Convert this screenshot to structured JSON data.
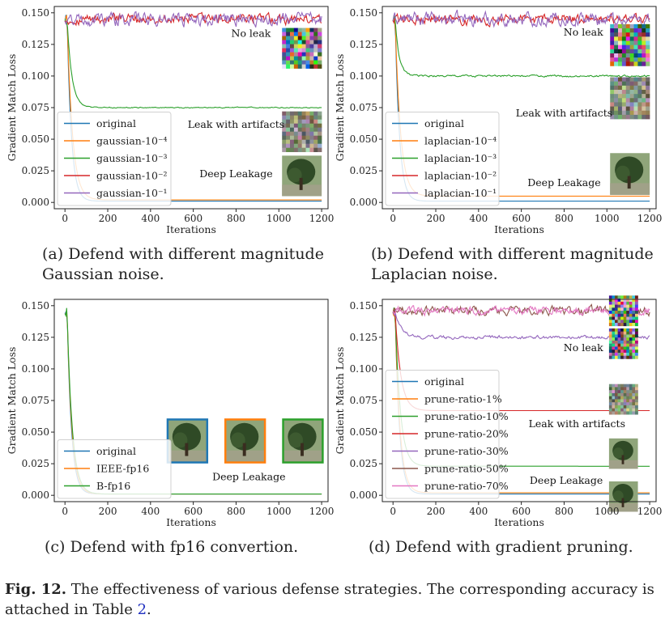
{
  "figure": {
    "label": "Fig. 12.",
    "caption_text": "The effectiveness of various defense strategies. The corresponding accuracy is attached in Table",
    "caption_ref": "2",
    "caption_end": "."
  },
  "colors": {
    "original": "#1f77b4",
    "c1": "#ff7f0e",
    "c2": "#2ca02c",
    "c3": "#d62728",
    "c4": "#9467bd",
    "c5": "#8c564b",
    "c6": "#e377c2"
  },
  "chart_data": [
    {
      "id": "a",
      "type": "line",
      "caption_line1": "(a) Defend with different magnitude",
      "caption_line2": "Gaussian noise.",
      "xlabel": "Iterations",
      "ylabel": "Gradient Match Loss",
      "xlim": [
        -50,
        1230
      ],
      "ylim": [
        -0.005,
        0.155
      ],
      "xticks": [
        0,
        200,
        400,
        600,
        800,
        1000,
        1200
      ],
      "yticks": [
        0.0,
        0.025,
        0.05,
        0.075,
        0.1,
        0.125,
        0.15
      ],
      "ytick_labels": [
        "0.000",
        "0.025",
        "0.050",
        "0.075",
        "0.100",
        "0.125",
        "0.150"
      ],
      "legend_position": "lower-left",
      "series": [
        {
          "name": "original",
          "color": "#1f77b4",
          "start": 0.145,
          "drop": 20,
          "final": 0.001,
          "noise": 0
        },
        {
          "name": "gaussian-10⁻⁴",
          "color": "#ff7f0e",
          "start": 0.145,
          "drop": 25,
          "final": 0.002,
          "noise": 0
        },
        {
          "name": "gaussian-10⁻³",
          "color": "#2ca02c",
          "start": 0.145,
          "drop": 22,
          "final": 0.075,
          "noise": 0.0003
        },
        {
          "name": "gaussian-10⁻²",
          "color": "#d62728",
          "start": 0.145,
          "drop": 0,
          "final": 0.145,
          "noise": 0.003
        },
        {
          "name": "gaussian-10⁻¹",
          "color": "#9467bd",
          "start": 0.145,
          "drop": 0,
          "final": 0.145,
          "noise": 0.004
        }
      ],
      "annotations": [
        {
          "text": "No leak",
          "x": 870,
          "y": 0.131
        },
        {
          "text": "Leak with artifacts",
          "x": 800,
          "y": 0.059
        },
        {
          "text": "Deep Leakage",
          "x": 800,
          "y": 0.02
        }
      ],
      "thumbnails": [
        {
          "kind": "noise",
          "x0": 1015,
          "y_top": 0.138,
          "w": 185,
          "h": 0.032
        },
        {
          "kind": "artifacts",
          "x0": 1015,
          "y_top": 0.072,
          "w": 185,
          "h": 0.032
        },
        {
          "kind": "tree",
          "x0": 1015,
          "y_top": 0.037,
          "w": 185,
          "h": 0.032
        }
      ]
    },
    {
      "id": "b",
      "type": "line",
      "caption_line1": "(b) Defend with different magnitude",
      "caption_line2": "Laplacian noise.",
      "xlabel": "Iterations",
      "ylabel": "Gradient Match Loss",
      "xlim": [
        -50,
        1230
      ],
      "ylim": [
        -0.005,
        0.155
      ],
      "xticks": [
        0,
        200,
        400,
        600,
        800,
        1000,
        1200
      ],
      "yticks": [
        0.0,
        0.025,
        0.05,
        0.075,
        0.1,
        0.125,
        0.15
      ],
      "ytick_labels": [
        "0.000",
        "0.025",
        "0.050",
        "0.075",
        "0.100",
        "0.125",
        "0.150"
      ],
      "legend_position": "lower-left",
      "series": [
        {
          "name": "original",
          "color": "#1f77b4",
          "start": 0.145,
          "drop": 20,
          "final": 0.001,
          "noise": 0
        },
        {
          "name": "laplacian-10⁻⁴",
          "color": "#ff7f0e",
          "start": 0.145,
          "drop": 25,
          "final": 0.005,
          "noise": 0
        },
        {
          "name": "laplacian-10⁻³",
          "color": "#2ca02c",
          "start": 0.145,
          "drop": 18,
          "final": 0.1,
          "noise": 0.0006
        },
        {
          "name": "laplacian-10⁻²",
          "color": "#d62728",
          "start": 0.145,
          "drop": 0,
          "final": 0.145,
          "noise": 0.003
        },
        {
          "name": "laplacian-10⁻¹",
          "color": "#9467bd",
          "start": 0.145,
          "drop": 0,
          "final": 0.145,
          "noise": 0.004
        }
      ],
      "annotations": [
        {
          "text": "No leak",
          "x": 890,
          "y": 0.132
        },
        {
          "text": "Leak with artifacts",
          "x": 800,
          "y": 0.068
        },
        {
          "text": "Deep Leakage",
          "x": 800,
          "y": 0.013
        }
      ],
      "thumbnails": [
        {
          "kind": "noise",
          "x0": 1015,
          "y_top": 0.141,
          "w": 185,
          "h": 0.033
        },
        {
          "kind": "artifacts",
          "x0": 1015,
          "y_top": 0.099,
          "w": 185,
          "h": 0.033
        },
        {
          "kind": "tree",
          "x0": 1015,
          "y_top": 0.039,
          "w": 185,
          "h": 0.033
        }
      ]
    },
    {
      "id": "c",
      "type": "line",
      "caption_line1": "(c) Defend with fp16 convertion.",
      "caption_line2": "",
      "xlabel": "Iterations",
      "ylabel": "Gradient Match Loss",
      "xlim": [
        -50,
        1230
      ],
      "ylim": [
        -0.005,
        0.155
      ],
      "xticks": [
        0,
        200,
        400,
        600,
        800,
        1000,
        1200
      ],
      "yticks": [
        0.0,
        0.025,
        0.05,
        0.075,
        0.1,
        0.125,
        0.15
      ],
      "ytick_labels": [
        "0.000",
        "0.025",
        "0.050",
        "0.075",
        "0.100",
        "0.125",
        "0.150"
      ],
      "legend_position": "lower-left",
      "series": [
        {
          "name": "original",
          "color": "#1f77b4",
          "start": 0.145,
          "drop": 20,
          "final": 0.001,
          "noise": 0
        },
        {
          "name": "IEEE-fp16",
          "color": "#ff7f0e",
          "start": 0.145,
          "drop": 22,
          "final": 0.001,
          "noise": 0
        },
        {
          "name": "B-fp16",
          "color": "#2ca02c",
          "start": 0.145,
          "drop": 24,
          "final": 0.001,
          "noise": 0
        }
      ],
      "annotations": [
        {
          "text": "Deep Leakage",
          "x": 860,
          "y": 0.012
        }
      ],
      "thumbnails": [
        {
          "kind": "tree",
          "x0": 480,
          "y_top": 0.06,
          "w": 185,
          "h": 0.034,
          "border": "#1f77b4"
        },
        {
          "kind": "tree",
          "x0": 750,
          "y_top": 0.06,
          "w": 185,
          "h": 0.034,
          "border": "#ff7f0e"
        },
        {
          "kind": "tree",
          "x0": 1020,
          "y_top": 0.06,
          "w": 185,
          "h": 0.034,
          "border": "#2ca02c"
        }
      ]
    },
    {
      "id": "d",
      "type": "line",
      "caption_line1": "(d) Defend with gradient pruning.",
      "caption_line2": "",
      "xlabel": "Iterations",
      "ylabel": "Gradient Match Loss",
      "xlim": [
        -50,
        1230
      ],
      "ylim": [
        -0.005,
        0.155
      ],
      "xticks": [
        0,
        200,
        400,
        600,
        800,
        1000,
        1200
      ],
      "yticks": [
        0.0,
        0.025,
        0.05,
        0.075,
        0.1,
        0.125,
        0.15
      ],
      "ytick_labels": [
        "0.000",
        "0.025",
        "0.050",
        "0.075",
        "0.100",
        "0.125",
        "0.150"
      ],
      "legend_position": "lower-left",
      "series": [
        {
          "name": "original",
          "color": "#1f77b4",
          "start": 0.145,
          "drop": 20,
          "final": 0.001,
          "noise": 0
        },
        {
          "name": "prune-ratio-1%",
          "color": "#ff7f0e",
          "start": 0.145,
          "drop": 22,
          "final": 0.002,
          "noise": 0
        },
        {
          "name": "prune-ratio-10%",
          "color": "#2ca02c",
          "start": 0.145,
          "drop": 24,
          "final": 0.023,
          "noise": 0
        },
        {
          "name": "prune-ratio-20%",
          "color": "#d62728",
          "start": 0.145,
          "drop": 26,
          "final": 0.067,
          "noise": 0
        },
        {
          "name": "prune-ratio-30%",
          "color": "#9467bd",
          "start": 0.145,
          "drop": 30,
          "final": 0.125,
          "noise": 0.001
        },
        {
          "name": "prune-ratio-50%",
          "color": "#8c564b",
          "start": 0.145,
          "drop": 0,
          "final": 0.146,
          "noise": 0.0025
        },
        {
          "name": "prune-ratio-70%",
          "color": "#e377c2",
          "start": 0.145,
          "drop": 0,
          "final": 0.146,
          "noise": 0.0025
        }
      ],
      "annotations": [
        {
          "text": "No leak",
          "x": 890,
          "y": 0.114
        },
        {
          "text": "Leak with artifacts",
          "x": 860,
          "y": 0.054
        },
        {
          "text": "Deep Leakage",
          "x": 810,
          "y": 0.009
        }
      ],
      "thumbnails": [
        {
          "kind": "noise",
          "x0": 1010,
          "y_top": 0.158,
          "w": 135,
          "h": 0.024
        },
        {
          "kind": "noise",
          "x0": 1010,
          "y_top": 0.132,
          "w": 135,
          "h": 0.024
        },
        {
          "kind": "artifacts",
          "x0": 1010,
          "y_top": 0.088,
          "w": 135,
          "h": 0.024
        },
        {
          "kind": "tree",
          "x0": 1010,
          "y_top": 0.045,
          "w": 135,
          "h": 0.024
        },
        {
          "kind": "tree",
          "x0": 1010,
          "y_top": 0.011,
          "w": 135,
          "h": 0.024
        }
      ]
    }
  ]
}
